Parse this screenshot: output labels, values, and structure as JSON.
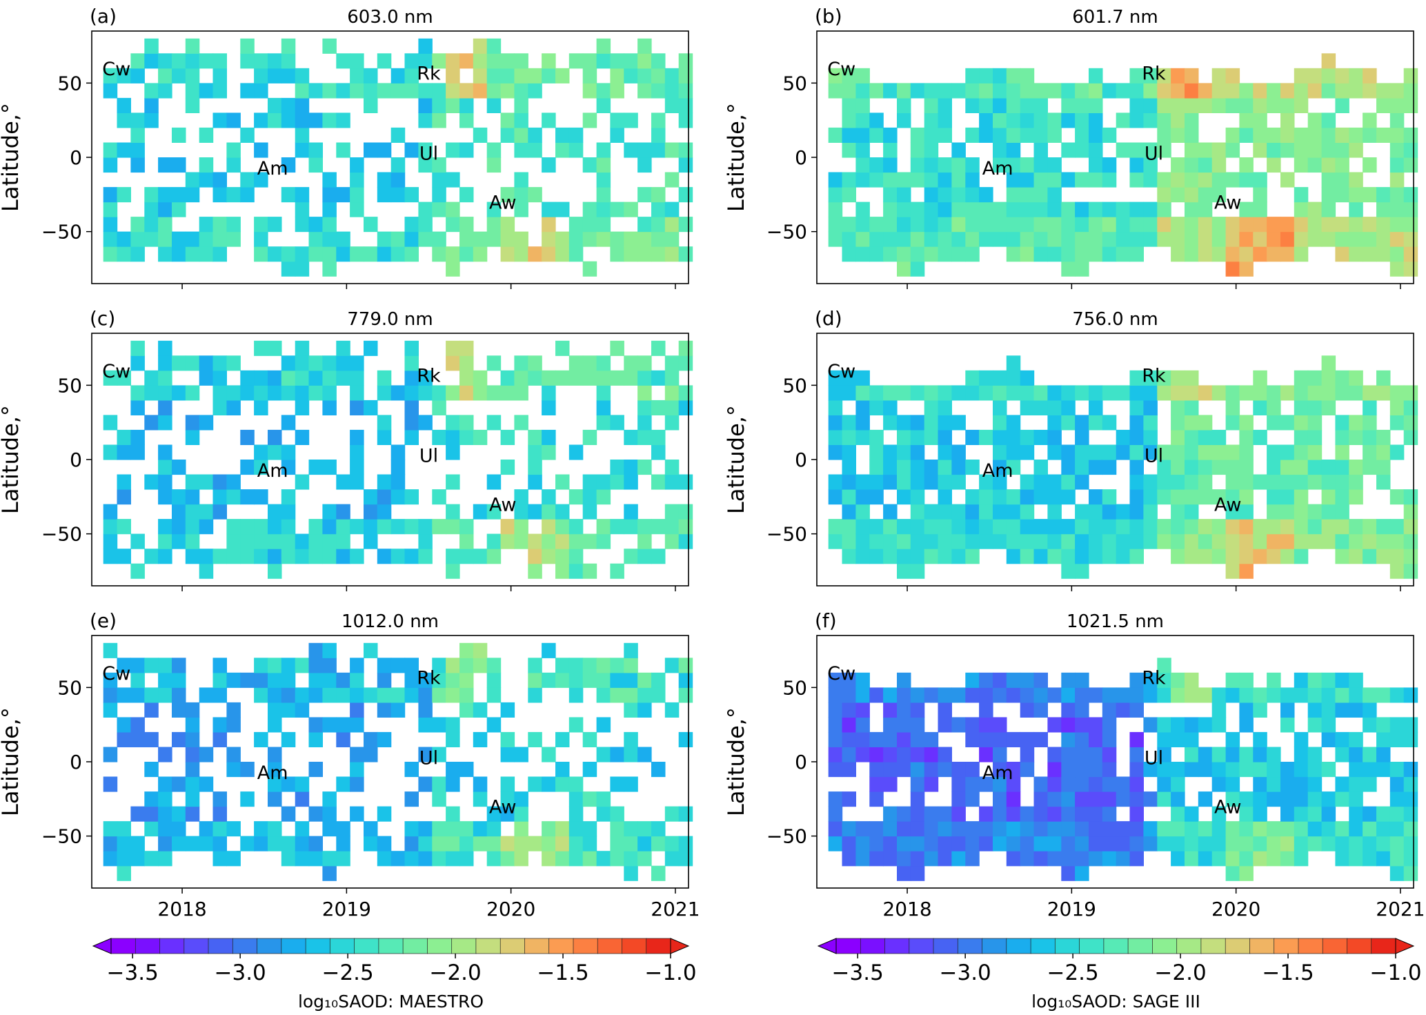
{
  "figure": {
    "latitude_label": "Latitude,°",
    "x_ticks": [
      "2018",
      "2019",
      "2020",
      "2021"
    ],
    "y_ticks": [
      "50",
      "0",
      "−50"
    ]
  },
  "colorbars": [
    {
      "label": "log₁₀SAOD: MAESTRO",
      "ticks": [
        "−3.5",
        "−3.0",
        "−2.5",
        "−2.0",
        "−1.5",
        "−1.0"
      ]
    },
    {
      "label": "log₁₀SAOD: SAGE III",
      "ticks": [
        "−3.5",
        "−3.0",
        "−2.5",
        "−2.0",
        "−1.5",
        "−1.0"
      ]
    }
  ],
  "chart_data": [
    {
      "type": "heatmap",
      "panel": "(a)",
      "title": "603.0 nm",
      "instrument": "MAESTRO",
      "xlabel": "",
      "ylabel": "Latitude,°",
      "xlim": [
        2017.45,
        2021.08
      ],
      "ylim": [
        -85,
        85
      ],
      "colorbar_range": [
        -3.6,
        -1.0
      ],
      "typical_log10_saod": -2.45,
      "annotations": [
        {
          "text": "Cw",
          "date": 2017.6,
          "lat": 60
        },
        {
          "text": "Rk",
          "date": 2019.5,
          "lat": 57
        },
        {
          "text": "Ul",
          "date": 2019.5,
          "lat": 3
        },
        {
          "text": "Am",
          "date": 2018.55,
          "lat": -7
        },
        {
          "text": "Aw",
          "date": 2019.95,
          "lat": -30
        }
      ]
    },
    {
      "type": "heatmap",
      "panel": "(b)",
      "title": "601.7 nm",
      "instrument": "SAGE III",
      "xlabel": "",
      "ylabel": "Latitude,°",
      "xlim": [
        2017.45,
        2021.08
      ],
      "ylim": [
        -85,
        85
      ],
      "colorbar_range": [
        -3.6,
        -1.0
      ],
      "typical_log10_saod": -2.3,
      "annotations": [
        {
          "text": "Cw",
          "date": 2017.6,
          "lat": 60
        },
        {
          "text": "Rk",
          "date": 2019.5,
          "lat": 57
        },
        {
          "text": "Ul",
          "date": 2019.5,
          "lat": 3
        },
        {
          "text": "Am",
          "date": 2018.55,
          "lat": -7
        },
        {
          "text": "Aw",
          "date": 2019.95,
          "lat": -30
        }
      ]
    },
    {
      "type": "heatmap",
      "panel": "(c)",
      "title": "779.0 nm",
      "instrument": "MAESTRO",
      "xlabel": "",
      "ylabel": "Latitude,°",
      "xlim": [
        2017.45,
        2021.08
      ],
      "ylim": [
        -85,
        85
      ],
      "colorbar_range": [
        -3.6,
        -1.0
      ],
      "typical_log10_saod": -2.55,
      "annotations": [
        {
          "text": "Cw",
          "date": 2017.6,
          "lat": 60
        },
        {
          "text": "Rk",
          "date": 2019.5,
          "lat": 57
        },
        {
          "text": "Ul",
          "date": 2019.5,
          "lat": 3
        },
        {
          "text": "Am",
          "date": 2018.55,
          "lat": -7
        },
        {
          "text": "Aw",
          "date": 2019.95,
          "lat": -30
        }
      ]
    },
    {
      "type": "heatmap",
      "panel": "(d)",
      "title": "756.0 nm",
      "instrument": "SAGE III",
      "xlabel": "",
      "ylabel": "Latitude,°",
      "xlim": [
        2017.45,
        2021.08
      ],
      "ylim": [
        -85,
        85
      ],
      "colorbar_range": [
        -3.6,
        -1.0
      ],
      "typical_log10_saod": -2.45,
      "annotations": [
        {
          "text": "Cw",
          "date": 2017.6,
          "lat": 60
        },
        {
          "text": "Rk",
          "date": 2019.5,
          "lat": 57
        },
        {
          "text": "Ul",
          "date": 2019.5,
          "lat": 3
        },
        {
          "text": "Am",
          "date": 2018.55,
          "lat": -7
        },
        {
          "text": "Aw",
          "date": 2019.95,
          "lat": -30
        }
      ]
    },
    {
      "type": "heatmap",
      "panel": "(e)",
      "title": "1012.0 nm",
      "instrument": "MAESTRO",
      "xlabel": "",
      "ylabel": "Latitude,°",
      "xlim": [
        2017.45,
        2021.08
      ],
      "ylim": [
        -85,
        85
      ],
      "colorbar_range": [
        -3.6,
        -1.0
      ],
      "typical_log10_saod": -2.65,
      "annotations": [
        {
          "text": "Cw",
          "date": 2017.6,
          "lat": 60
        },
        {
          "text": "Rk",
          "date": 2019.5,
          "lat": 57
        },
        {
          "text": "Ul",
          "date": 2019.5,
          "lat": 3
        },
        {
          "text": "Am",
          "date": 2018.55,
          "lat": -7
        },
        {
          "text": "Aw",
          "date": 2019.95,
          "lat": -30
        }
      ]
    },
    {
      "type": "heatmap",
      "panel": "(f)",
      "title": "1021.5 nm",
      "instrument": "SAGE III",
      "xlabel": "",
      "ylabel": "Latitude,°",
      "xlim": [
        2017.45,
        2021.08
      ],
      "ylim": [
        -85,
        85
      ],
      "colorbar_range": [
        -3.6,
        -1.0
      ],
      "typical_log10_saod": -2.8,
      "annotations": [
        {
          "text": "Cw",
          "date": 2017.6,
          "lat": 60
        },
        {
          "text": "Rk",
          "date": 2019.5,
          "lat": 57
        },
        {
          "text": "Ul",
          "date": 2019.5,
          "lat": 3
        },
        {
          "text": "Am",
          "date": 2018.55,
          "lat": -7
        },
        {
          "text": "Aw",
          "date": 2019.95,
          "lat": -30
        }
      ]
    }
  ]
}
